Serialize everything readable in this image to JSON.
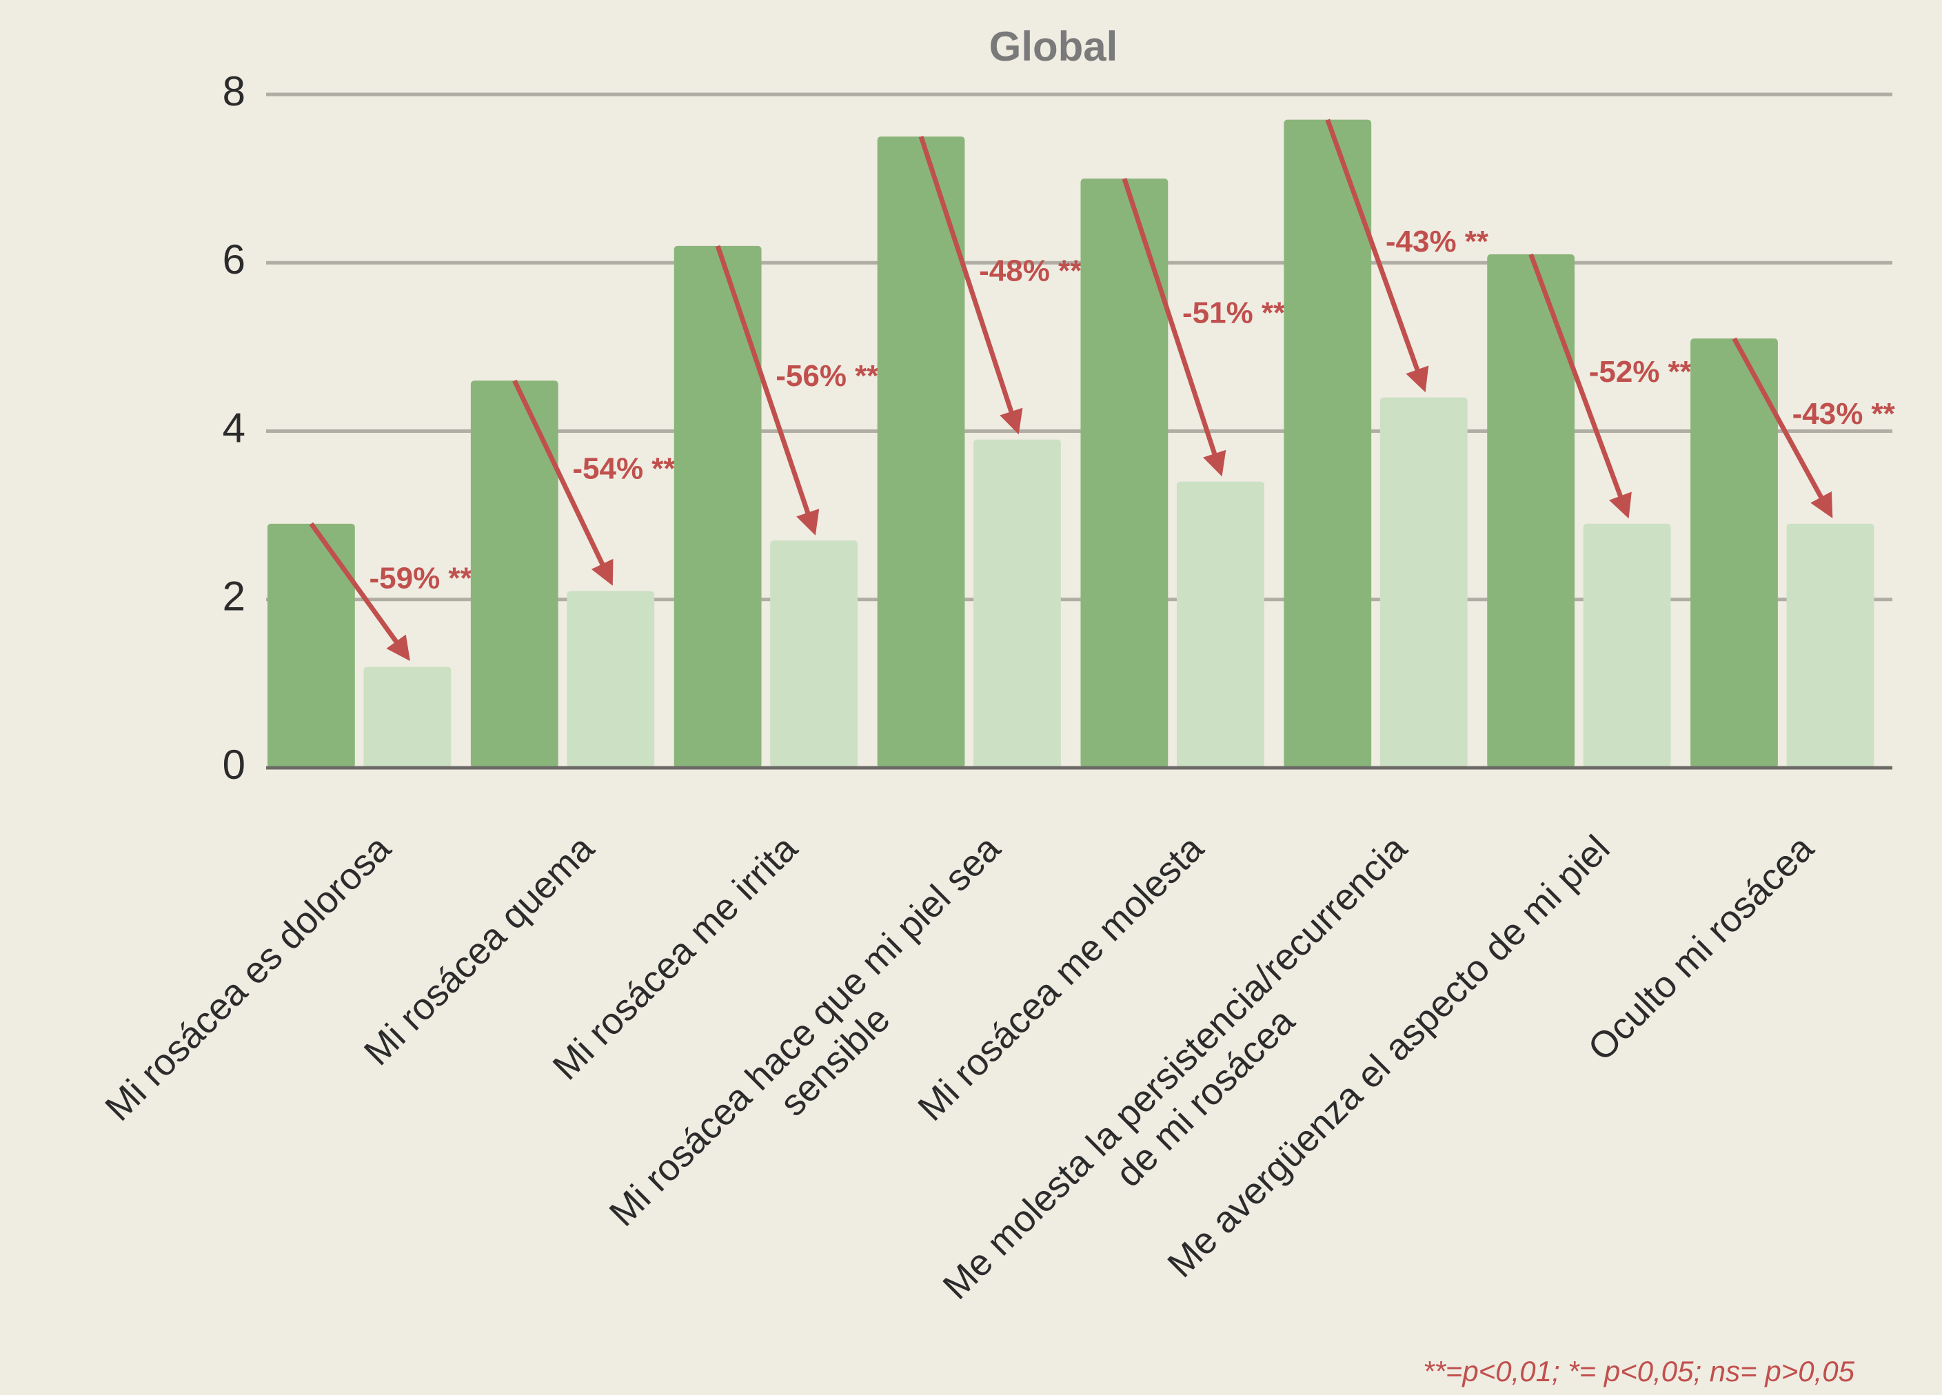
{
  "chart_data": {
    "type": "bar",
    "title": "Global",
    "categories": [
      "Mi rosácea es dolorosa",
      "Mi rosácea quema",
      "Mi rosácea me irrita",
      "Mi rosácea hace que mi piel sea\nsensible",
      "Mi rosácea me molesta",
      "Me molesta la persistencia/recurrencia\nde mi rosácea",
      "Me avergüenza el aspecto de mi piel",
      "Oculto mi rosácea"
    ],
    "series": [
      {
        "color": "#8ab57a",
        "values": [
          2.9,
          4.6,
          6.2,
          7.5,
          7.0,
          7.7,
          6.1,
          5.1
        ]
      },
      {
        "color": "#cce0c4",
        "values": [
          1.2,
          2.1,
          2.7,
          3.9,
          3.4,
          4.4,
          2.9,
          2.9
        ]
      }
    ],
    "annotations": [
      "-59% **",
      "-54% **",
      "-56% **",
      "-48% **",
      "-51% **",
      "-43% **",
      "-52% **",
      "-43% **"
    ],
    "annotation_color": "#c0504d",
    "footnote": "**=p<0,01; *= p<0,05; ns= p>0,05",
    "ylim": [
      0,
      8
    ],
    "yticks": [
      0,
      2,
      4,
      6,
      8
    ],
    "grid": true
  }
}
